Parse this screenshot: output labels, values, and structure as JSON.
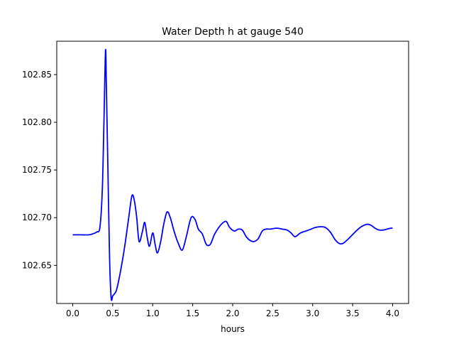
{
  "chart_data": {
    "type": "line",
    "title": "Water Depth h at gauge 540",
    "xlabel": "hours",
    "ylabel": "",
    "xlim": [
      -0.2,
      4.2
    ],
    "ylim": [
      102.61,
      102.885
    ],
    "xticks": [
      0.0,
      0.5,
      1.0,
      1.5,
      2.0,
      2.5,
      3.0,
      3.5,
      4.0
    ],
    "xtick_labels": [
      "0.0",
      "0.5",
      "1.0",
      "1.5",
      "2.0",
      "2.5",
      "3.0",
      "3.5",
      "4.0"
    ],
    "yticks": [
      102.65,
      102.7,
      102.75,
      102.8,
      102.85
    ],
    "ytick_labels": [
      "102.65",
      "102.70",
      "102.75",
      "102.80",
      "102.85"
    ],
    "grid": false,
    "legend": "none",
    "series": [
      {
        "color": "#0000ff",
        "x": [
          0.0,
          0.1,
          0.2,
          0.25,
          0.3,
          0.34,
          0.37,
          0.39,
          0.41,
          0.42,
          0.44,
          0.46,
          0.48,
          0.5,
          0.52,
          0.55,
          0.6,
          0.65,
          0.7,
          0.74,
          0.77,
          0.8,
          0.83,
          0.87,
          0.9,
          0.93,
          0.96,
          1.0,
          1.03,
          1.06,
          1.1,
          1.14,
          1.18,
          1.22,
          1.27,
          1.32,
          1.37,
          1.42,
          1.48,
          1.53,
          1.57,
          1.62,
          1.67,
          1.72,
          1.77,
          1.82,
          1.87,
          1.92,
          1.96,
          2.02,
          2.07,
          2.12,
          2.17,
          2.22,
          2.27,
          2.32,
          2.37,
          2.42,
          2.47,
          2.55,
          2.62,
          2.68,
          2.73,
          2.78,
          2.85,
          2.95,
          3.05,
          3.15,
          3.22,
          3.28,
          3.33,
          3.38,
          3.45,
          3.52,
          3.6,
          3.68,
          3.73,
          3.78,
          3.83,
          3.88,
          3.93,
          3.98,
          4.0
        ],
        "y": [
          102.682,
          102.682,
          102.682,
          102.683,
          102.685,
          102.69,
          102.73,
          102.8,
          102.875,
          102.84,
          102.75,
          102.66,
          102.616,
          102.618,
          102.62,
          102.625,
          102.645,
          102.67,
          102.7,
          102.723,
          102.718,
          102.7,
          102.675,
          102.685,
          102.695,
          102.68,
          102.67,
          102.684,
          102.672,
          102.663,
          102.675,
          102.694,
          102.706,
          102.7,
          102.685,
          102.673,
          102.666,
          102.68,
          102.7,
          102.698,
          102.688,
          102.683,
          102.672,
          102.672,
          102.682,
          102.689,
          102.694,
          102.696,
          102.69,
          102.686,
          102.688,
          102.687,
          102.68,
          102.676,
          102.675,
          102.678,
          102.686,
          102.688,
          102.688,
          102.689,
          102.688,
          102.687,
          102.684,
          102.68,
          102.684,
          102.687,
          102.69,
          102.69,
          102.685,
          102.677,
          102.673,
          102.673,
          102.678,
          102.684,
          102.69,
          102.693,
          102.692,
          102.689,
          102.687,
          102.687,
          102.688,
          102.689,
          102.689
        ]
      }
    ]
  }
}
